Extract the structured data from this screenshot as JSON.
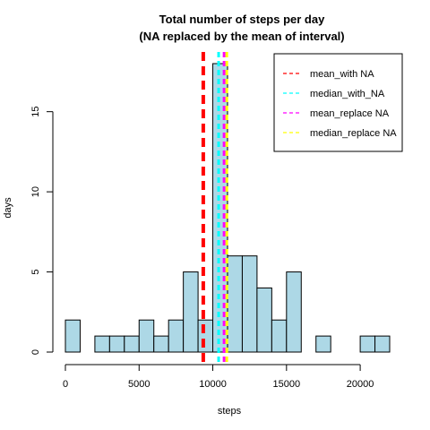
{
  "chart_data": {
    "type": "bar",
    "title_line1": "Total number of steps per day",
    "title_line2": "(NA replaced by the mean of interval)",
    "xlabel": "steps",
    "ylabel": "days",
    "xlim": [
      0,
      22000
    ],
    "ylim": [
      0,
      18
    ],
    "xticks": [
      0,
      5000,
      10000,
      15000,
      20000
    ],
    "yticks": [
      0,
      5,
      10,
      15
    ],
    "bin_width": 1000,
    "bins_start": [
      0,
      1000,
      2000,
      3000,
      4000,
      5000,
      6000,
      7000,
      8000,
      9000,
      10000,
      11000,
      12000,
      13000,
      14000,
      15000,
      16000,
      17000,
      18000,
      19000,
      20000,
      21000
    ],
    "values": [
      2,
      0,
      1,
      1,
      1,
      2,
      1,
      2,
      5,
      2,
      18,
      6,
      6,
      4,
      2,
      5,
      0,
      1,
      0,
      0,
      1,
      1
    ],
    "bar_fill": "#add8e6",
    "reference_lines": [
      {
        "name": "mean_with NA",
        "value": 9354.23,
        "color": "#ff0000"
      },
      {
        "name": "median_with_NA",
        "value": 10395,
        "color": "#00ffff"
      },
      {
        "name": "mean_replace NA",
        "value": 10766.19,
        "color": "#ff00ff"
      },
      {
        "name": "median_replace NA",
        "value": 10766.19,
        "color": "#ffff00"
      }
    ],
    "legend_position": "top-right"
  }
}
